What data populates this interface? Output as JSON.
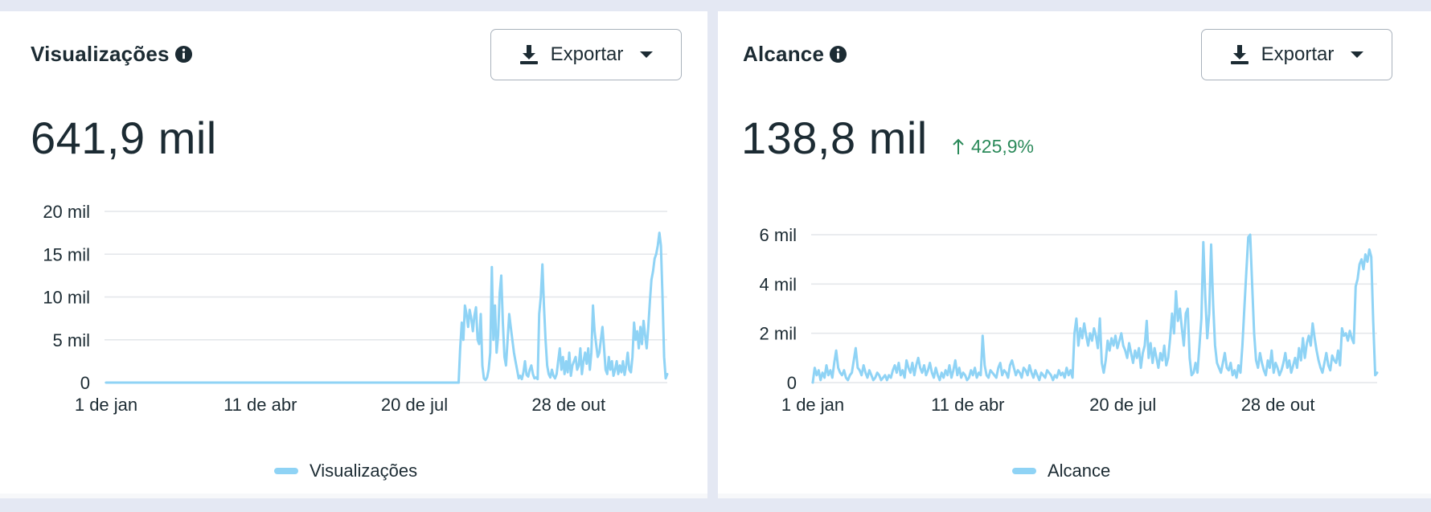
{
  "panels": [
    {
      "title": "Visualizações",
      "export_label": "Exportar",
      "total": "641,9 mil",
      "delta": "",
      "legend": "Visualizações"
    },
    {
      "title": "Alcance",
      "export_label": "Exportar",
      "total": "138,8 mil",
      "delta": "425,9%",
      "legend": "Alcance"
    }
  ],
  "icons": {
    "info": "info-icon",
    "download": "download-icon",
    "dropdown": "caret-down-icon",
    "delta": "arrow-up-icon"
  },
  "colors": {
    "series": "#8fd3f5",
    "grid": "#e3e6ea",
    "delta_positive": "#2b8a5a",
    "text": "#1c2b33"
  },
  "chart_data": [
    {
      "type": "line",
      "title": "",
      "xlabel": "",
      "ylabel": "",
      "ylim": [
        0,
        20000
      ],
      "yticks": [
        0,
        5000,
        10000,
        15000,
        20000
      ],
      "ytick_labels": [
        "0",
        "5 mil",
        "10 mil",
        "15 mil",
        "20 mil"
      ],
      "xticks": [
        0,
        100,
        200,
        300
      ],
      "xtick_labels": [
        "1 de jan",
        "11 de abr",
        "20 de jul",
        "28 de out"
      ],
      "xlim": [
        0,
        364
      ],
      "grid": true,
      "legend_position": "bottom-center",
      "series": [
        {
          "name": "Visualizações",
          "values": [
            0,
            0,
            0,
            0,
            0,
            0,
            0,
            0,
            0,
            0,
            0,
            0,
            0,
            0,
            0,
            0,
            0,
            0,
            0,
            0,
            0,
            0,
            0,
            0,
            0,
            0,
            0,
            0,
            0,
            0,
            0,
            0,
            0,
            0,
            0,
            0,
            0,
            0,
            0,
            0,
            0,
            0,
            0,
            0,
            0,
            0,
            0,
            0,
            0,
            0,
            0,
            0,
            0,
            0,
            0,
            0,
            0,
            0,
            0,
            0,
            0,
            0,
            0,
            0,
            0,
            0,
            0,
            0,
            0,
            0,
            0,
            0,
            0,
            0,
            0,
            0,
            0,
            0,
            0,
            0,
            0,
            0,
            0,
            0,
            0,
            0,
            0,
            0,
            0,
            0,
            0,
            0,
            0,
            0,
            0,
            0,
            0,
            0,
            0,
            0,
            0,
            0,
            0,
            0,
            0,
            0,
            0,
            0,
            0,
            0,
            0,
            0,
            0,
            0,
            0,
            0,
            0,
            0,
            0,
            0,
            0,
            0,
            0,
            0,
            0,
            0,
            0,
            0,
            0,
            0,
            0,
            0,
            0,
            0,
            0,
            0,
            0,
            0,
            0,
            0,
            0,
            0,
            0,
            0,
            0,
            0,
            0,
            0,
            0,
            0,
            0,
            0,
            0,
            0,
            0,
            0,
            0,
            0,
            0,
            0,
            0,
            0,
            0,
            0,
            0,
            0,
            0,
            0,
            0,
            0,
            0,
            0,
            0,
            0,
            0,
            0,
            0,
            0,
            0,
            0,
            0,
            0,
            0,
            0,
            0,
            0,
            0,
            0,
            0,
            0,
            0,
            0,
            0,
            0,
            0,
            0,
            0,
            0,
            0,
            0,
            0,
            0,
            0,
            0,
            0,
            0,
            0,
            0,
            0,
            0,
            0,
            0,
            0,
            0,
            0,
            0,
            0,
            0,
            0,
            0,
            0,
            0,
            0,
            0,
            4000,
            7000,
            5000,
            9000,
            8000,
            6500,
            8500,
            7500,
            6000,
            7800,
            8800,
            5000,
            4500,
            8000,
            2000,
            500,
            300,
            600,
            1500,
            3500,
            13500,
            5000,
            9000,
            3500,
            5500,
            10500,
            12500,
            7000,
            3000,
            2000,
            5000,
            8000,
            6500,
            5000,
            3500,
            2500,
            1500,
            500,
            800,
            400,
            1200,
            2500,
            900,
            700,
            1500,
            2000,
            1000,
            500,
            600,
            400,
            8000,
            10000,
            13800,
            9000,
            5000,
            2000,
            1000,
            600,
            1500,
            800,
            500,
            1000,
            2500,
            4000,
            1500,
            3000,
            1000,
            2500,
            1200,
            3500,
            800,
            2000,
            2500,
            3000,
            1500,
            2000,
            4000,
            1000,
            2500,
            3500,
            2200,
            4000,
            1500,
            3500,
            9000,
            6000,
            4500,
            3000,
            3500,
            5000,
            6500,
            4000,
            1500,
            1000,
            3000,
            1500,
            2500,
            800,
            1500,
            2500,
            1000,
            2000,
            1200,
            2500,
            900,
            2000,
            3500,
            1500,
            1200,
            3000,
            7000,
            5000,
            6000,
            4000,
            6500,
            4500,
            7200,
            5500,
            4000,
            6500,
            9500,
            12000,
            13000,
            14500,
            15000,
            16000,
            17500,
            16000,
            10000,
            3000,
            500,
            1000
          ]
        }
      ]
    },
    {
      "type": "line",
      "title": "",
      "xlabel": "",
      "ylabel": "",
      "ylim": [
        0,
        6000
      ],
      "yticks": [
        0,
        2000,
        4000,
        6000
      ],
      "ytick_labels": [
        "0",
        "2 mil",
        "4 mil",
        "6 mil"
      ],
      "xticks": [
        0,
        100,
        200,
        300
      ],
      "xtick_labels": [
        "1 de jan",
        "11 de abr",
        "20 de jul",
        "28 de out"
      ],
      "xlim": [
        0,
        364
      ],
      "grid": true,
      "legend_position": "bottom-center",
      "series": [
        {
          "name": "Alcance",
          "values": [
            0,
            600,
            300,
            500,
            100,
            400,
            200,
            700,
            300,
            500,
            200,
            800,
            1300,
            600,
            400,
            300,
            500,
            200,
            100,
            300,
            400,
            900,
            1400,
            600,
            500,
            300,
            700,
            400,
            200,
            500,
            300,
            100,
            200,
            400,
            300,
            100,
            200,
            300,
            100,
            300,
            200,
            500,
            700,
            400,
            800,
            300,
            500,
            200,
            900,
            600,
            400,
            800,
            300,
            700,
            1000,
            600,
            400,
            700,
            300,
            500,
            800,
            400,
            200,
            600,
            300,
            100,
            400,
            200,
            500,
            300,
            700,
            200,
            500,
            900,
            300,
            600,
            200,
            400,
            300,
            100,
            200,
            500,
            300,
            600,
            200,
            400,
            300,
            1900,
            700,
            300,
            200,
            500,
            400,
            300,
            200,
            600,
            800,
            300,
            500,
            400,
            200,
            700,
            900,
            600,
            300,
            500,
            400,
            200,
            600,
            500,
            300,
            700,
            400,
            200,
            500,
            300,
            100,
            400,
            300,
            200,
            500,
            400,
            300,
            100,
            300,
            200,
            500,
            300,
            400,
            200,
            600,
            300,
            500,
            200,
            2000,
            2600,
            1500,
            2200,
            1800,
            2400,
            1900,
            1500,
            2000,
            1700,
            2200,
            1900,
            1400,
            2600,
            800,
            400,
            900,
            1700,
            1300,
            1800,
            1500,
            1900,
            1400,
            1700,
            2000,
            1500,
            1300,
            1000,
            1600,
            1200,
            800,
            1300,
            1000,
            1400,
            600,
            1200,
            1500,
            2500,
            1000,
            1600,
            800,
            1400,
            1000,
            600,
            1200,
            900,
            1500,
            700,
            1000,
            1800,
            2800,
            2000,
            3700,
            2500,
            3000,
            2200,
            1500,
            2800,
            3000,
            1000,
            300,
            400,
            800,
            400,
            1500,
            2600,
            5700,
            3500,
            1800,
            2800,
            5600,
            3200,
            1500,
            800,
            600,
            400,
            800,
            1200,
            600,
            500,
            800,
            300,
            500,
            200,
            700,
            400,
            1500,
            3000,
            4500,
            5900,
            6000,
            4000,
            2000,
            900,
            600,
            1200,
            800,
            500,
            300,
            900,
            600,
            1300,
            400,
            800,
            600,
            300,
            500,
            800,
            1200,
            600,
            900,
            400,
            700,
            1000,
            600,
            1400,
            900,
            1800,
            1000,
            1600,
            1900,
            1500,
            2400,
            1800,
            1300,
            900,
            600,
            400,
            800,
            1200,
            700,
            500,
            1100,
            900,
            800,
            1300,
            700,
            2200,
            1900,
            2000,
            1700,
            2100,
            1800,
            1600,
            3900,
            4200,
            4800,
            5000,
            4600,
            5200,
            4900,
            5400,
            5100,
            2500,
            300,
            400
          ]
        }
      ]
    }
  ]
}
